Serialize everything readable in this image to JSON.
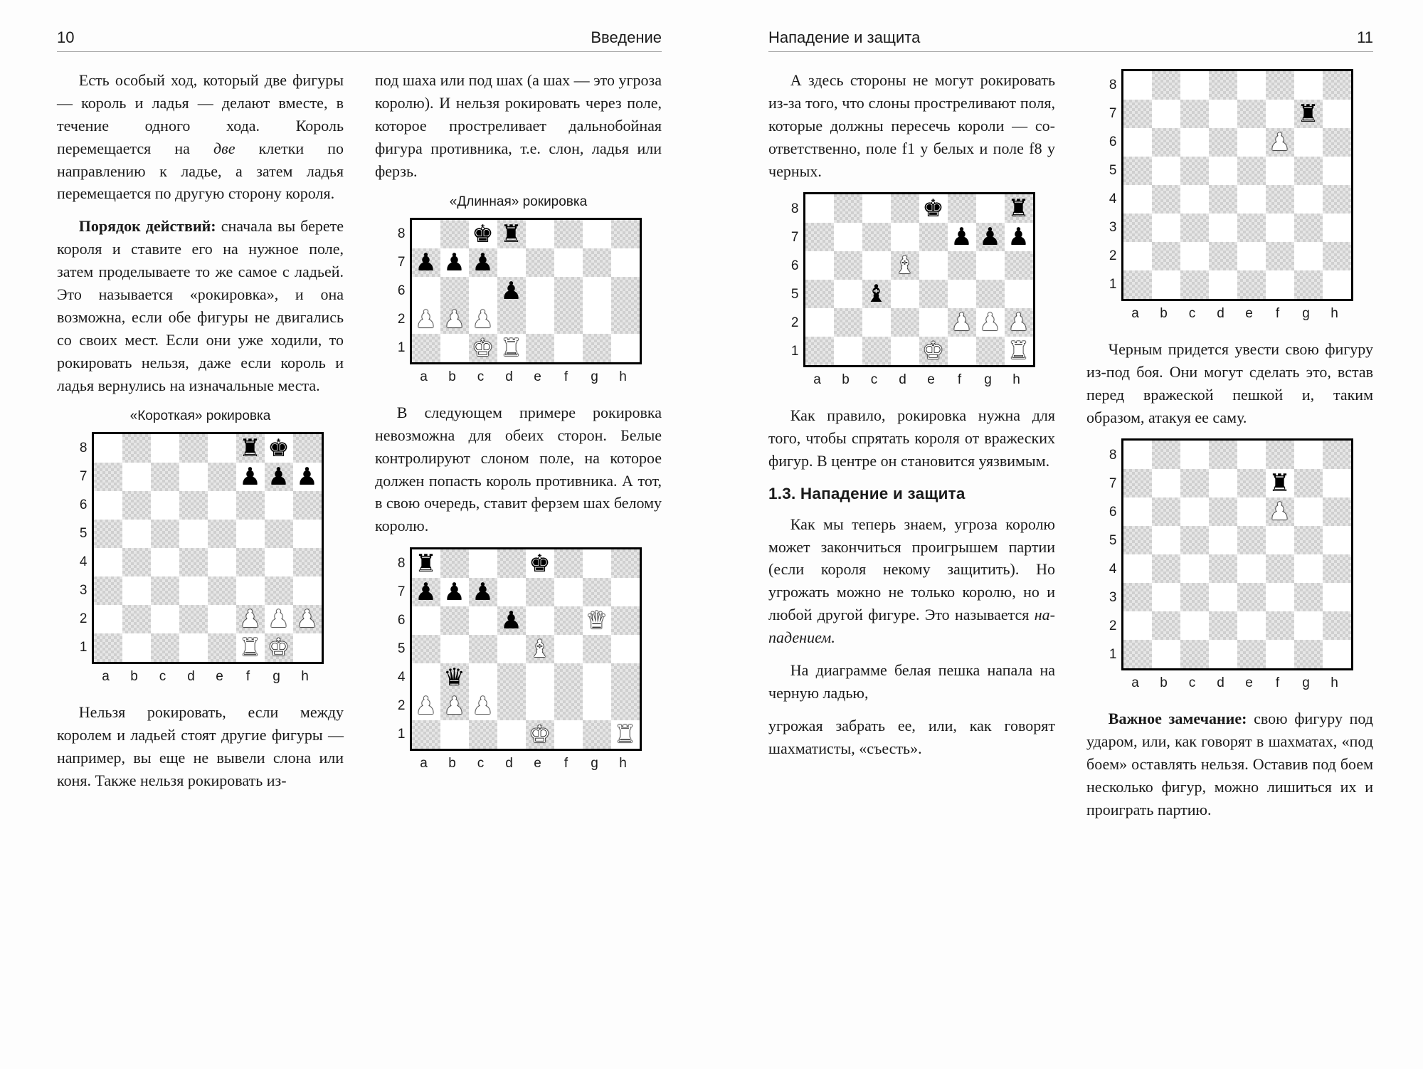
{
  "page_left": {
    "num": "10",
    "title": "Введение"
  },
  "page_right": {
    "num": "11",
    "title": "Нападение и защита"
  },
  "left": {
    "p1": "Есть особый ход, который две фигуры — король и ладья — делают вместе, в течение одного хода. Король перемещается на ",
    "p1_ital": "две",
    "p1b": " клетки по направлению к ладье, а затем ладья перемеща­ется по другую сторону короля.",
    "p2_lead": "Порядок действий:",
    "p2_rest": " сначала вы берете короля и ставите его на нужное поле, затем проде­лываете то же самое с ладьей. Это называется «рокировка», и она возможна, если обе фи­гуры не двигались со своих мест. Если они уже ходили, то рокировать нельзя, даже если король и ладья вернулись на изначальные места.",
    "p3": "Нельзя рокировать, если между королем и ладьей стоят другие фигуры — например, вы еще не вывели слона или коня. Также нельзя рокировать из-",
    "p4": "под шаха или под шах (а шах — это угроза королю). И нельзя рокировать через поле, которое простреливает дальнобойная фигура противника, т.е. слон, ладья или ферзь.",
    "p5": "В следующем примере ро­кировка невозможна для обеих сторон. Белые контролируют слоном поле, на которое дол­жен попасть король противни­ка. А тот, в свою очередь, ста­вит ферзем шах белому королю.",
    "cap1": "«Короткая» рокировка",
    "cap2": "«Длинная» рокировка"
  },
  "right": {
    "p1": "А здесь стороны не могут ро­кировать из-за того, что слоны простреливают поля, которые должны пересечь короли — со­ответственно, поле f1 у белых и поле f8 у черных.",
    "p2": "Как правило, рокировка нужна для того, чтобы спря­тать короля от вражеских фи­гур. В центре он становится уязвимым.",
    "sect": "1.3. Нападение и защита",
    "p3a": "Как мы теперь знаем, угро­за королю может закончить­ся проигрышем партии (если короля некому защитить). Но угрожать можно не только королю, но и любой другой фигуре. Это называется ",
    "p3_ital": "на­падением.",
    "p4": "На диаграмме белая пеш­ка напала на черную ладью,",
    "p5": "угрожая забрать ее, или, как говорят шахматисты, «съесть».",
    "p6": "Черным придется увести свою фигуру из-под боя. Они могут сделать это, встав перед вражеской пешкой и, таким образом, атакуя ее саму.",
    "p7_lead": "Важное замечание:",
    "p7_rest": " свою фигу­ру под ударом, или, как говорят в шахматах, «под боем» остав­лять нельзя. Оставив под боем несколько фигур, можно ли­шиться их и проиграть партию."
  },
  "files": [
    "a",
    "b",
    "c",
    "d",
    "e",
    "f",
    "g",
    "h"
  ],
  "boards": {
    "short_castle": {
      "ranks": [
        8,
        7,
        6,
        5,
        4,
        3,
        2,
        1
      ],
      "rows": [
        [
          null,
          null,
          null,
          null,
          null,
          "br",
          "bk",
          null
        ],
        [
          null,
          null,
          null,
          null,
          null,
          "bp",
          "bp",
          "bp"
        ],
        [
          null,
          null,
          null,
          null,
          null,
          null,
          null,
          null
        ],
        [
          null,
          null,
          null,
          null,
          null,
          null,
          null,
          null
        ],
        [
          null,
          null,
          null,
          null,
          null,
          null,
          null,
          null
        ],
        [
          null,
          null,
          null,
          null,
          null,
          null,
          null,
          null
        ],
        [
          null,
          null,
          null,
          null,
          null,
          "wP",
          "wP",
          "wP"
        ],
        [
          null,
          null,
          null,
          null,
          null,
          "wR",
          "wK",
          null
        ]
      ]
    },
    "long_castle": {
      "ranks": [
        8,
        7,
        6,
        2,
        1
      ],
      "rows": [
        [
          null,
          null,
          "bk",
          "br",
          null,
          null,
          null,
          null
        ],
        [
          "bp",
          "bp",
          "bp",
          null,
          null,
          null,
          null,
          null
        ],
        [
          null,
          null,
          null,
          "bp",
          null,
          null,
          null,
          null
        ],
        [
          "wP",
          "wP",
          "wP",
          null,
          null,
          null,
          null,
          null
        ],
        [
          null,
          null,
          "wK",
          "wR",
          null,
          null,
          null,
          null
        ]
      ]
    },
    "cant_castle": {
      "ranks": [
        8,
        7,
        6,
        5,
        4,
        2,
        1
      ],
      "rows": [
        [
          "br",
          null,
          null,
          null,
          "bk",
          null,
          null,
          null
        ],
        [
          "bp",
          "bp",
          "bp",
          null,
          null,
          null,
          null,
          null
        ],
        [
          null,
          null,
          null,
          "bp",
          null,
          null,
          "wQ",
          null
        ],
        [
          null,
          null,
          null,
          null,
          "wB",
          null,
          null,
          null
        ],
        [
          null,
          "bq",
          null,
          null,
          null,
          null,
          null,
          null
        ],
        [
          "wP",
          "wP",
          "wP",
          null,
          null,
          null,
          null,
          null
        ],
        [
          null,
          null,
          null,
          null,
          "wK",
          null,
          null,
          "wR"
        ]
      ]
    },
    "bishop_lines": {
      "ranks": [
        8,
        7,
        6,
        5,
        2,
        1
      ],
      "rows": [
        [
          null,
          null,
          null,
          null,
          "bk",
          null,
          null,
          "br"
        ],
        [
          null,
          null,
          null,
          null,
          null,
          "bp",
          "bp",
          "bp"
        ],
        [
          null,
          null,
          null,
          "wB",
          null,
          null,
          null,
          null
        ],
        [
          null,
          null,
          "bb",
          null,
          null,
          null,
          null,
          null
        ],
        [
          null,
          null,
          null,
          null,
          null,
          "wP",
          "wP",
          "wP"
        ],
        [
          null,
          null,
          null,
          null,
          "wK",
          null,
          null,
          "wR"
        ]
      ]
    },
    "attack1": {
      "ranks": [
        8,
        7,
        6,
        5,
        4,
        3,
        2,
        1
      ],
      "rows": [
        [
          null,
          null,
          null,
          null,
          null,
          null,
          null,
          null
        ],
        [
          null,
          null,
          null,
          null,
          null,
          null,
          "br",
          null
        ],
        [
          null,
          null,
          null,
          null,
          null,
          "wP",
          null,
          null
        ],
        [
          null,
          null,
          null,
          null,
          null,
          null,
          null,
          null
        ],
        [
          null,
          null,
          null,
          null,
          null,
          null,
          null,
          null
        ],
        [
          null,
          null,
          null,
          null,
          null,
          null,
          null,
          null
        ],
        [
          null,
          null,
          null,
          null,
          null,
          null,
          null,
          null
        ],
        [
          null,
          null,
          null,
          null,
          null,
          null,
          null,
          null
        ]
      ]
    },
    "attack2": {
      "ranks": [
        8,
        7,
        6,
        5,
        4,
        3,
        2,
        1
      ],
      "rows": [
        [
          null,
          null,
          null,
          null,
          null,
          null,
          null,
          null
        ],
        [
          null,
          null,
          null,
          null,
          null,
          "br",
          null,
          null
        ],
        [
          null,
          null,
          null,
          null,
          null,
          "wP",
          null,
          null
        ],
        [
          null,
          null,
          null,
          null,
          null,
          null,
          null,
          null
        ],
        [
          null,
          null,
          null,
          null,
          null,
          null,
          null,
          null
        ],
        [
          null,
          null,
          null,
          null,
          null,
          null,
          null,
          null
        ],
        [
          null,
          null,
          null,
          null,
          null,
          null,
          null,
          null
        ],
        [
          null,
          null,
          null,
          null,
          null,
          null,
          null,
          null
        ]
      ]
    }
  },
  "pieces": {
    "bk": "♚",
    "bq": "♛",
    "br": "♜",
    "bb": "♝",
    "bn": "♞",
    "bp": "♟",
    "wK": "♔",
    "wQ": "♕",
    "wR": "♖",
    "wB": "♗",
    "wN": "♘",
    "wP": "♙"
  },
  "piece_render": {
    "bk": "♚",
    "bq": "♛",
    "br": "♜",
    "bb": "♝",
    "bn": "♞",
    "bp": "♟",
    "wK": "♚",
    "wQ": "♛",
    "wR": "♜",
    "wB": "♝",
    "wN": "♞",
    "wP": "♟"
  }
}
